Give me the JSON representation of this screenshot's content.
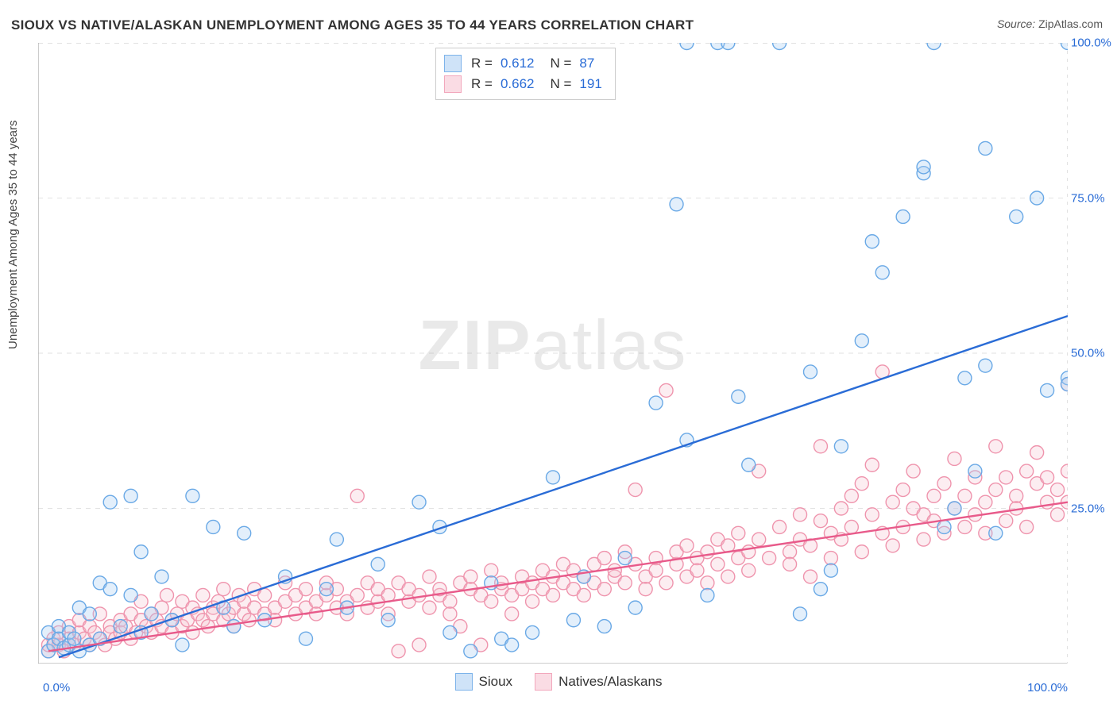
{
  "title": "SIOUX VS NATIVE/ALASKAN UNEMPLOYMENT AMONG AGES 35 TO 44 YEARS CORRELATION CHART",
  "source_prefix": "Source:",
  "source_name": "ZipAtlas.com",
  "watermark_bold": "ZIP",
  "watermark_light": "atlas",
  "ylabel": "Unemployment Among Ages 35 to 44 years",
  "chart": {
    "type": "scatter",
    "background_color": "#ffffff",
    "grid_color": "#e2e2e2",
    "axis_color": "#9a9a9a",
    "tick_color": "#9a9a9a",
    "xlim": [
      0,
      100
    ],
    "ylim": [
      0,
      100
    ],
    "xticks_minor_step": 5,
    "yticks": [
      25,
      50,
      75,
      100
    ],
    "xtick_label_min": "0.0%",
    "xtick_label_max": "100.0%",
    "ytick_labels": [
      "25.0%",
      "50.0%",
      "75.0%",
      "100.0%"
    ],
    "marker_radius": 8.5,
    "marker_stroke_width": 1.4,
    "marker_fill_opacity": 0.32,
    "trendline_width": 2.4,
    "series": [
      {
        "id": "sioux",
        "label": "Sioux",
        "r_value": "0.612",
        "n_value": "87",
        "fill_color": "#a9cdf3",
        "stroke_color": "#6aa9e6",
        "swatch_fill": "#cfe3f8",
        "swatch_stroke": "#7db3ea",
        "trendline_color": "#2a6cd6",
        "trendline": {
          "x1": 2,
          "y1": 1,
          "x2": 100,
          "y2": 56
        },
        "points": [
          [
            1,
            2
          ],
          [
            1,
            5
          ],
          [
            1.5,
            3
          ],
          [
            2,
            4
          ],
          [
            2,
            6
          ],
          [
            2.5,
            2.5
          ],
          [
            3,
            3
          ],
          [
            3,
            5
          ],
          [
            3.5,
            4
          ],
          [
            4,
            2
          ],
          [
            4,
            9
          ],
          [
            5,
            3
          ],
          [
            5,
            8
          ],
          [
            6,
            13
          ],
          [
            6,
            4
          ],
          [
            7,
            12
          ],
          [
            7,
            26
          ],
          [
            8,
            6
          ],
          [
            9,
            11
          ],
          [
            9,
            27
          ],
          [
            10,
            18
          ],
          [
            10,
            5
          ],
          [
            11,
            8
          ],
          [
            12,
            14
          ],
          [
            13,
            7
          ],
          [
            14,
            3
          ],
          [
            15,
            27
          ],
          [
            17,
            22
          ],
          [
            18,
            9
          ],
          [
            19,
            6
          ],
          [
            20,
            21
          ],
          [
            22,
            7
          ],
          [
            24,
            14
          ],
          [
            26,
            4
          ],
          [
            28,
            12
          ],
          [
            29,
            20
          ],
          [
            30,
            9
          ],
          [
            33,
            16
          ],
          [
            34,
            7
          ],
          [
            37,
            26
          ],
          [
            39,
            22
          ],
          [
            40,
            5
          ],
          [
            42,
            2
          ],
          [
            44,
            13
          ],
          [
            45,
            4
          ],
          [
            46,
            3
          ],
          [
            48,
            5
          ],
          [
            50,
            30
          ],
          [
            52,
            7
          ],
          [
            53,
            14
          ],
          [
            55,
            6
          ],
          [
            57,
            17
          ],
          [
            58,
            9
          ],
          [
            60,
            42
          ],
          [
            62,
            74
          ],
          [
            63,
            100
          ],
          [
            63,
            36
          ],
          [
            65,
            11
          ],
          [
            66,
            100
          ],
          [
            67,
            100
          ],
          [
            68,
            43
          ],
          [
            69,
            32
          ],
          [
            72,
            100
          ],
          [
            74,
            8
          ],
          [
            75,
            47
          ],
          [
            76,
            12
          ],
          [
            77,
            15
          ],
          [
            78,
            35
          ],
          [
            80,
            52
          ],
          [
            81,
            68
          ],
          [
            82,
            63
          ],
          [
            84,
            72
          ],
          [
            86,
            79
          ],
          [
            86,
            80
          ],
          [
            87,
            100
          ],
          [
            88,
            22
          ],
          [
            89,
            25
          ],
          [
            90,
            46
          ],
          [
            91,
            31
          ],
          [
            92,
            48
          ],
          [
            92,
            83
          ],
          [
            93,
            21
          ],
          [
            95,
            72
          ],
          [
            97,
            75
          ],
          [
            98,
            44
          ],
          [
            100,
            46
          ],
          [
            100,
            45
          ],
          [
            100,
            100
          ]
        ]
      },
      {
        "id": "natives",
        "label": "Natives/Alaskans",
        "r_value": "0.662",
        "n_value": "191",
        "fill_color": "#f7c7d2",
        "stroke_color": "#ef94ad",
        "swatch_fill": "#fadce4",
        "swatch_stroke": "#f2a7bc",
        "trendline_color": "#e85a8a",
        "trendline": {
          "x1": 1,
          "y1": 2,
          "x2": 100,
          "y2": 26
        },
        "points": [
          [
            1,
            2
          ],
          [
            1,
            3
          ],
          [
            1.5,
            4
          ],
          [
            2,
            3
          ],
          [
            2,
            5
          ],
          [
            2.5,
            2
          ],
          [
            3,
            4
          ],
          [
            3,
            6
          ],
          [
            3.5,
            3
          ],
          [
            4,
            5
          ],
          [
            4,
            7
          ],
          [
            4.5,
            4
          ],
          [
            5,
            3
          ],
          [
            5,
            6
          ],
          [
            5.5,
            5
          ],
          [
            6,
            4
          ],
          [
            6,
            8
          ],
          [
            6.5,
            3
          ],
          [
            7,
            6
          ],
          [
            7,
            5
          ],
          [
            7.5,
            4
          ],
          [
            8,
            7
          ],
          [
            8,
            5
          ],
          [
            8.5,
            6
          ],
          [
            9,
            4
          ],
          [
            9,
            8
          ],
          [
            9.5,
            5
          ],
          [
            10,
            7
          ],
          [
            10,
            10
          ],
          [
            10.5,
            6
          ],
          [
            11,
            5
          ],
          [
            11,
            8
          ],
          [
            11.5,
            7
          ],
          [
            12,
            6
          ],
          [
            12,
            9
          ],
          [
            12.5,
            11
          ],
          [
            13,
            7
          ],
          [
            13,
            5
          ],
          [
            13.5,
            8
          ],
          [
            14,
            6
          ],
          [
            14,
            10
          ],
          [
            14.5,
            7
          ],
          [
            15,
            5
          ],
          [
            15,
            9
          ],
          [
            15.5,
            8
          ],
          [
            16,
            7
          ],
          [
            16,
            11
          ],
          [
            16.5,
            6
          ],
          [
            17,
            9
          ],
          [
            17,
            8
          ],
          [
            17.5,
            10
          ],
          [
            18,
            7
          ],
          [
            18,
            12
          ],
          [
            18.5,
            8
          ],
          [
            19,
            9
          ],
          [
            19,
            6
          ],
          [
            19.5,
            11
          ],
          [
            20,
            8
          ],
          [
            20,
            10
          ],
          [
            20.5,
            7
          ],
          [
            21,
            9
          ],
          [
            21,
            12
          ],
          [
            22,
            8
          ],
          [
            22,
            11
          ],
          [
            23,
            9
          ],
          [
            23,
            7
          ],
          [
            24,
            10
          ],
          [
            24,
            13
          ],
          [
            25,
            8
          ],
          [
            25,
            11
          ],
          [
            26,
            9
          ],
          [
            26,
            12
          ],
          [
            27,
            10
          ],
          [
            27,
            8
          ],
          [
            28,
            11
          ],
          [
            28,
            13
          ],
          [
            29,
            9
          ],
          [
            29,
            12
          ],
          [
            30,
            10
          ],
          [
            30,
            8
          ],
          [
            31,
            27
          ],
          [
            31,
            11
          ],
          [
            32,
            9
          ],
          [
            32,
            13
          ],
          [
            33,
            10
          ],
          [
            33,
            12
          ],
          [
            34,
            11
          ],
          [
            34,
            8
          ],
          [
            35,
            2
          ],
          [
            35,
            13
          ],
          [
            36,
            10
          ],
          [
            36,
            12
          ],
          [
            37,
            11
          ],
          [
            37,
            3
          ],
          [
            38,
            9
          ],
          [
            38,
            14
          ],
          [
            39,
            11
          ],
          [
            39,
            12
          ],
          [
            40,
            10
          ],
          [
            40,
            8
          ],
          [
            41,
            13
          ],
          [
            41,
            6
          ],
          [
            42,
            12
          ],
          [
            42,
            14
          ],
          [
            43,
            11
          ],
          [
            43,
            3
          ],
          [
            44,
            10
          ],
          [
            44,
            15
          ],
          [
            45,
            12
          ],
          [
            45,
            13
          ],
          [
            46,
            11
          ],
          [
            46,
            8
          ],
          [
            47,
            14
          ],
          [
            47,
            12
          ],
          [
            48,
            13
          ],
          [
            48,
            10
          ],
          [
            49,
            15
          ],
          [
            49,
            12
          ],
          [
            50,
            11
          ],
          [
            50,
            14
          ],
          [
            51,
            13
          ],
          [
            51,
            16
          ],
          [
            52,
            12
          ],
          [
            52,
            15
          ],
          [
            53,
            14
          ],
          [
            53,
            11
          ],
          [
            54,
            16
          ],
          [
            54,
            13
          ],
          [
            55,
            12
          ],
          [
            55,
            17
          ],
          [
            56,
            14
          ],
          [
            56,
            15
          ],
          [
            57,
            13
          ],
          [
            57,
            18
          ],
          [
            58,
            28
          ],
          [
            58,
            16
          ],
          [
            59,
            14
          ],
          [
            59,
            12
          ],
          [
            60,
            17
          ],
          [
            60,
            15
          ],
          [
            61,
            13
          ],
          [
            61,
            44
          ],
          [
            62,
            16
          ],
          [
            62,
            18
          ],
          [
            63,
            14
          ],
          [
            63,
            19
          ],
          [
            64,
            17
          ],
          [
            64,
            15
          ],
          [
            65,
            18
          ],
          [
            65,
            13
          ],
          [
            66,
            20
          ],
          [
            66,
            16
          ],
          [
            67,
            19
          ],
          [
            67,
            14
          ],
          [
            68,
            17
          ],
          [
            68,
            21
          ],
          [
            69,
            18
          ],
          [
            69,
            15
          ],
          [
            70,
            31
          ],
          [
            70,
            20
          ],
          [
            71,
            17
          ],
          [
            72,
            22
          ],
          [
            73,
            18
          ],
          [
            73,
            16
          ],
          [
            74,
            24
          ],
          [
            74,
            20
          ],
          [
            75,
            19
          ],
          [
            75,
            14
          ],
          [
            76,
            23
          ],
          [
            76,
            35
          ],
          [
            77,
            21
          ],
          [
            77,
            17
          ],
          [
            78,
            25
          ],
          [
            78,
            20
          ],
          [
            79,
            22
          ],
          [
            79,
            27
          ],
          [
            80,
            18
          ],
          [
            80,
            29
          ],
          [
            81,
            24
          ],
          [
            81,
            32
          ],
          [
            82,
            21
          ],
          [
            82,
            47
          ],
          [
            83,
            26
          ],
          [
            83,
            19
          ],
          [
            84,
            28
          ],
          [
            84,
            22
          ],
          [
            85,
            25
          ],
          [
            85,
            31
          ],
          [
            86,
            20
          ],
          [
            86,
            24
          ],
          [
            87,
            27
          ],
          [
            87,
            23
          ],
          [
            88,
            29
          ],
          [
            88,
            21
          ],
          [
            89,
            25
          ],
          [
            89,
            33
          ],
          [
            90,
            22
          ],
          [
            90,
            27
          ],
          [
            91,
            30
          ],
          [
            91,
            24
          ],
          [
            92,
            26
          ],
          [
            92,
            21
          ],
          [
            93,
            28
          ],
          [
            93,
            35
          ],
          [
            94,
            23
          ],
          [
            94,
            30
          ],
          [
            95,
            27
          ],
          [
            95,
            25
          ],
          [
            96,
            31
          ],
          [
            96,
            22
          ],
          [
            97,
            29
          ],
          [
            97,
            34
          ],
          [
            98,
            26
          ],
          [
            98,
            30
          ],
          [
            99,
            28
          ],
          [
            99,
            24
          ],
          [
            100,
            31
          ],
          [
            100,
            45
          ],
          [
            100,
            26
          ]
        ]
      }
    ]
  },
  "legend_r_label": "R =",
  "legend_n_label": "N ="
}
